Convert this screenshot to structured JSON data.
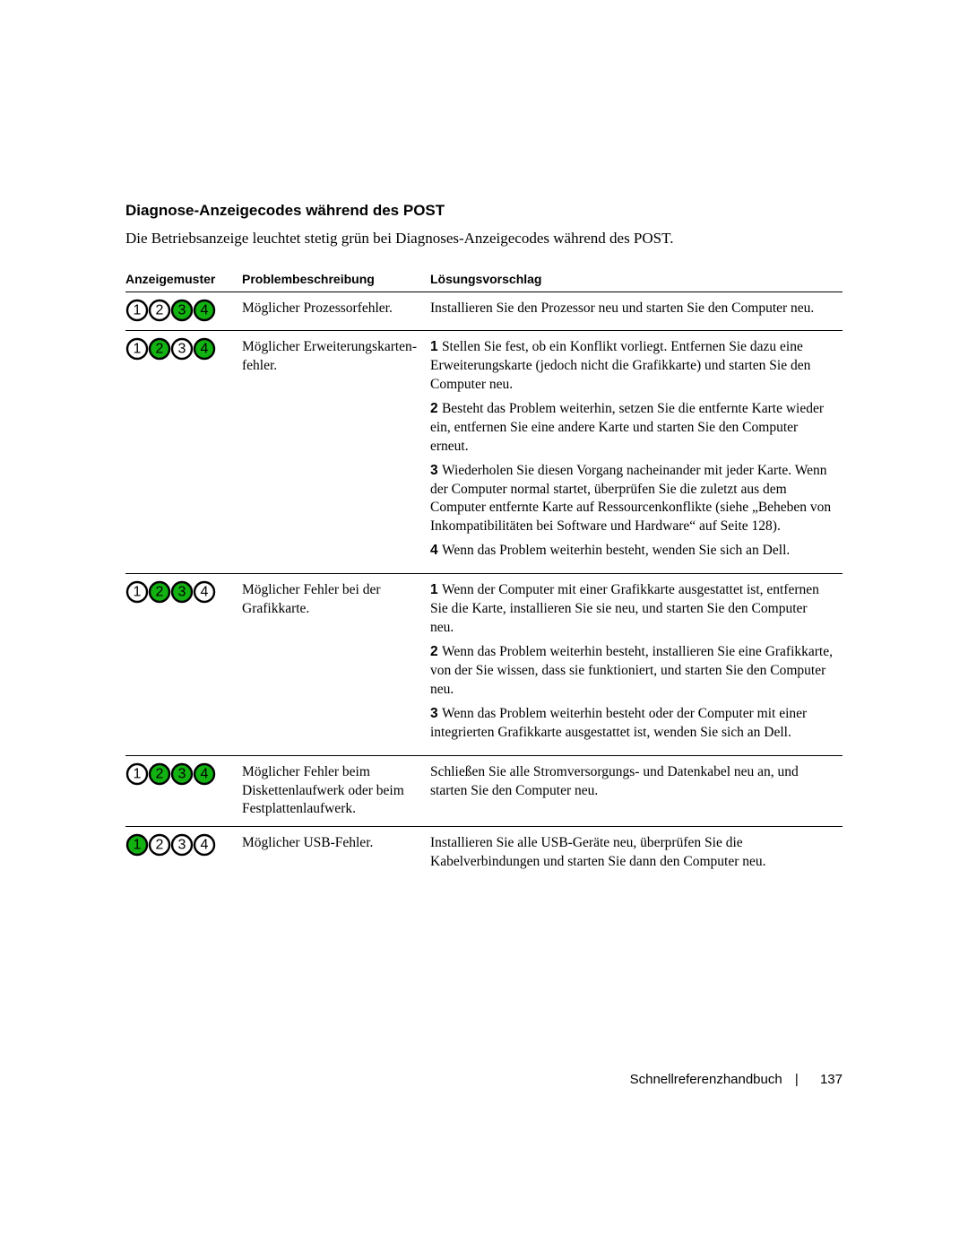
{
  "colors": {
    "green": "#12b212",
    "stroke": "#000000",
    "text": "#000000",
    "background": "#ffffff"
  },
  "section_heading": "Diagnose-Anzeigecodes während des POST",
  "intro": "Die Betriebsanzeige leuchtet stetig grün bei Diagnoses-Anzeigecodes während des POST.",
  "table": {
    "headers": {
      "pattern": "Anzeigemuster",
      "problem": "Problembeschreibung",
      "solution": "Lösungsvorschlag"
    },
    "rows": [
      {
        "pattern": {
          "lit": [
            false,
            false,
            true,
            true
          ]
        },
        "problem": "Möglicher Prozessorfehler.",
        "solution_plain": "Installieren Sie den Prozessor neu und starten Sie den Computer neu."
      },
      {
        "pattern": {
          "lit": [
            false,
            true,
            false,
            true
          ]
        },
        "problem": "Möglicher Erweiterungskarten­fehler.",
        "solution_list": [
          "Stellen Sie fest, ob ein Konflikt vorliegt. Entfernen Sie dazu eine Erweiterungskarte (jedoch nicht die Grafik­karte) und starten Sie den Computer neu.",
          "Besteht das Problem weiterhin, setzen Sie die entfernte Karte wieder ein, entfernen Sie eine andere Karte und starten Sie den Computer erneut.",
          "Wiederholen Sie diesen Vorgang nacheinander mit jeder Karte. Wenn der Computer normal startet, überprüfen Sie die zuletzt aus dem Computer entfernte Karte auf Ressourcenkonflikte (siehe „Beheben von Inkompati­bilitäten bei Software und Hardware“ auf Seite 128).",
          "Wenn das Problem weiterhin besteht, wenden Sie sich an Dell."
        ]
      },
      {
        "pattern": {
          "lit": [
            false,
            true,
            true,
            false
          ]
        },
        "problem": "Möglicher Fehler bei der Grafikkarte.",
        "solution_list": [
          "Wenn der Computer mit einer Grafikkarte ausgestattet ist, entfernen Sie die Karte, installieren Sie sie neu, und starten Sie den Computer neu.",
          "Wenn das Problem weiterhin besteht, installieren Sie eine Grafikkarte, von der Sie wissen, dass sie funktioniert, und starten Sie den Computer neu.",
          "Wenn das Problem weiterhin besteht oder der Computer mit einer integrierten Grafikkarte ausgestattet ist, wenden Sie sich an Dell."
        ]
      },
      {
        "pattern": {
          "lit": [
            false,
            true,
            true,
            true
          ]
        },
        "problem": "Möglicher Fehler beim Diskettenlaufwerk oder beim Festplattenlaufwerk.",
        "solution_plain": "Schließen Sie alle Stromversorgungs- und Datenkabel neu an, und starten Sie den Computer neu."
      },
      {
        "pattern": {
          "lit": [
            true,
            false,
            false,
            false
          ]
        },
        "problem": "Möglicher USB-Fehler.",
        "solution_plain": "Installieren Sie alle USB-Geräte neu, überprüfen Sie die Kabelverbindungen und starten Sie dann den Computer neu."
      }
    ]
  },
  "footer": {
    "doc_title": "Schnellreferenzhandbuch",
    "page_number": "137"
  },
  "svg_style": {
    "circle_radius": 11,
    "circle_spacing": 25,
    "stroke_width": 2.4,
    "font_size": 16,
    "font_family": "Arial, Helvetica, sans-serif",
    "font_weight": "normal"
  }
}
